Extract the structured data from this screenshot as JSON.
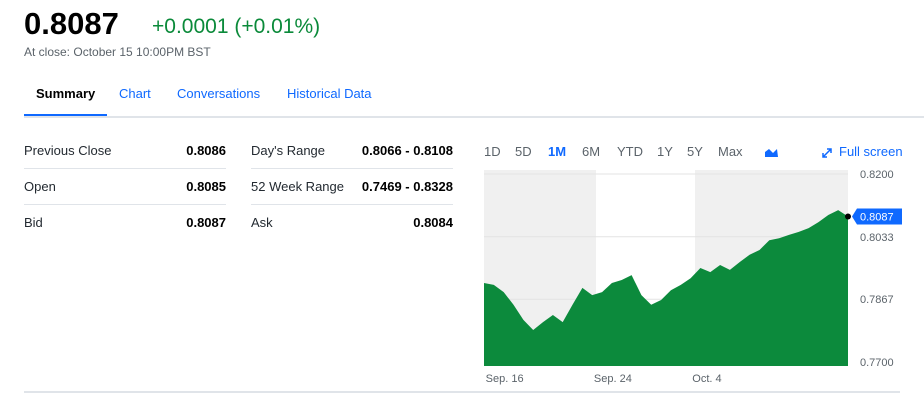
{
  "header": {
    "price": "0.8087",
    "change": "+0.0001 (+0.01%)",
    "close_note": "At close: October 15 10:00PM BST"
  },
  "tabs": [
    "Summary",
    "Chart",
    "Conversations",
    "Historical Data"
  ],
  "stats": [
    [
      "Previous Close",
      "0.8086",
      "Day's Range",
      "0.8066 - 0.8108"
    ],
    [
      "Open",
      "0.8085",
      "52 Week Range",
      "0.7469 - 0.8328"
    ],
    [
      "Bid",
      "0.8087",
      "Ask",
      "0.8084"
    ]
  ],
  "range_buttons": [
    "1D",
    "5D",
    "1M",
    "6M",
    "YTD",
    "1Y",
    "5Y",
    "Max"
  ],
  "full_screen": "Full screen",
  "chart_data": {
    "type": "area",
    "color": "#0c8a3c",
    "values": [
      0.791,
      0.7905,
      0.7886,
      0.7852,
      0.7812,
      0.7785,
      0.7806,
      0.7825,
      0.7806,
      0.7852,
      0.7897,
      0.7878,
      0.7886,
      0.791,
      0.7918,
      0.7931,
      0.7878,
      0.7852,
      0.7865,
      0.7891,
      0.7905,
      0.7923,
      0.795,
      0.7939,
      0.7958,
      0.7945,
      0.7966,
      0.7985,
      0.7998,
      0.8024,
      0.8029,
      0.8038,
      0.8046,
      0.8056,
      0.8072,
      0.8091,
      0.8104,
      0.8087
    ],
    "last_label": "0.8087",
    "ylim": [
      0.77,
      0.82
    ],
    "yticks": [
      {
        "value": 0.77,
        "label": "0.7700"
      },
      0.7867,
      0.8033,
      {
        "value": 0.82,
        "label": "0.8200"
      }
    ],
    "xticks": [
      {
        "value": 2,
        "label": "Sep. 16"
      },
      {
        "value": 13,
        "label": "Sep. 24"
      },
      {
        "value": 23,
        "label": "Oct. 4"
      }
    ]
  }
}
